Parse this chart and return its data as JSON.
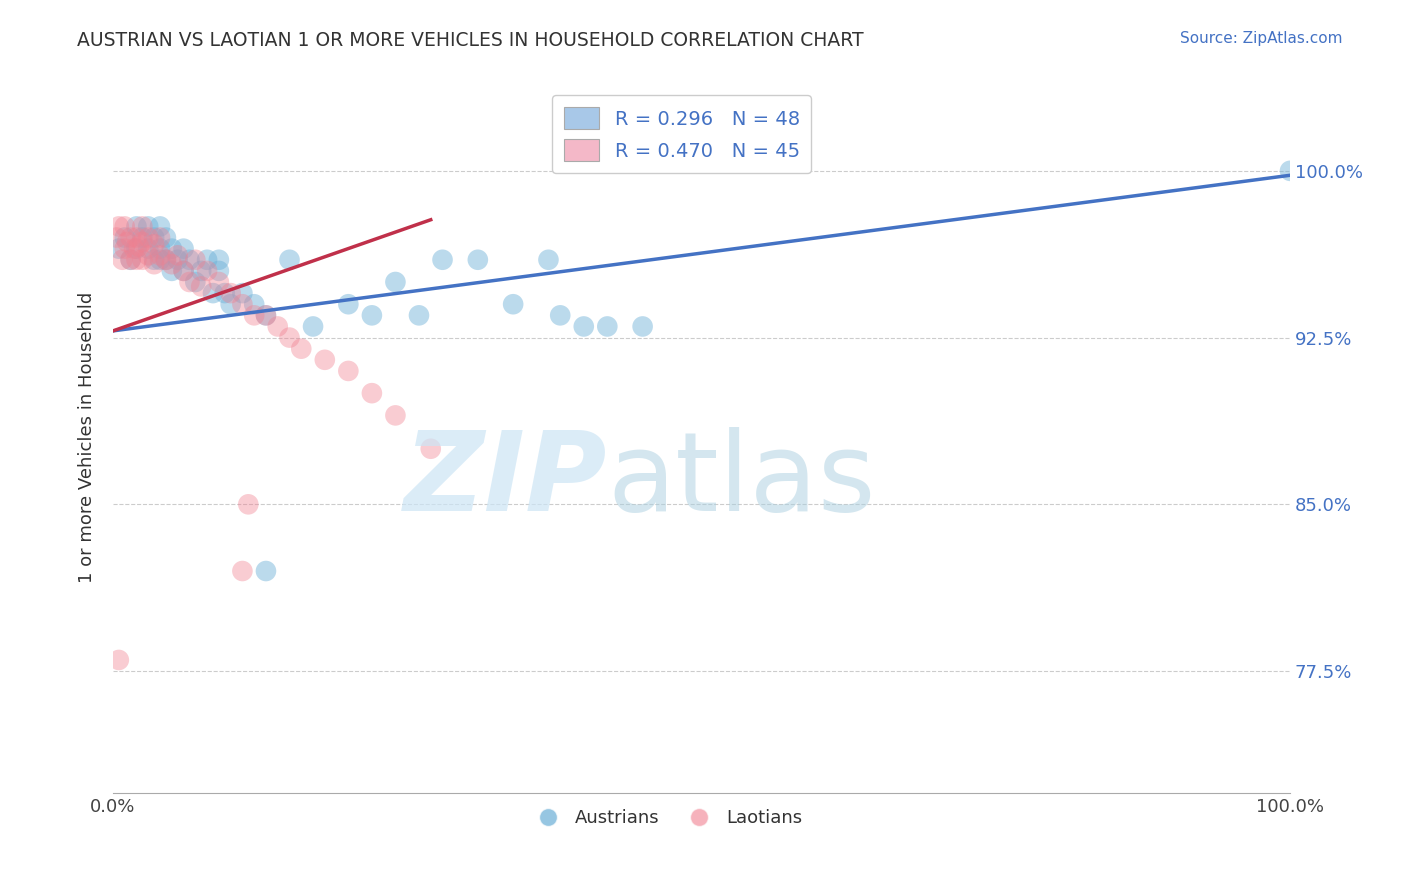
{
  "title": "AUSTRIAN VS LAOTIAN 1 OR MORE VEHICLES IN HOUSEHOLD CORRELATION CHART",
  "source": "Source: ZipAtlas.com",
  "ylabel": "1 or more Vehicles in Household",
  "xlim": [
    0.0,
    1.0
  ],
  "ylim": [
    0.72,
    1.04
  ],
  "yticks": [
    0.775,
    0.85,
    0.925,
    1.0
  ],
  "ytick_labels": [
    "77.5%",
    "85.0%",
    "92.5%",
    "100.0%"
  ],
  "xtick_labels": [
    "0.0%",
    "100.0%"
  ],
  "xticks": [
    0.0,
    1.0
  ],
  "legend_entries": [
    {
      "label": "R = 0.296   N = 48",
      "color": "#a8c8e8"
    },
    {
      "label": "R = 0.470   N = 45",
      "color": "#f4b8c8"
    }
  ],
  "blue_color": "#6aaed6",
  "pink_color": "#f08090",
  "blue_line_color": "#4472c4",
  "pink_line_color": "#c0304a",
  "background_color": "#ffffff",
  "blue_points_x": [
    0.005,
    0.01,
    0.015,
    0.02,
    0.02,
    0.025,
    0.03,
    0.03,
    0.035,
    0.035,
    0.04,
    0.04,
    0.04,
    0.045,
    0.045,
    0.05,
    0.05,
    0.055,
    0.06,
    0.06,
    0.065,
    0.07,
    0.075,
    0.08,
    0.085,
    0.09,
    0.09,
    0.095,
    0.1,
    0.11,
    0.12,
    0.13,
    0.15,
    0.17,
    0.2,
    0.22,
    0.24,
    0.26,
    0.28,
    0.31,
    0.34,
    0.37,
    0.38,
    0.4,
    0.42,
    0.45,
    0.13,
    1.0
  ],
  "blue_points_y": [
    0.965,
    0.97,
    0.96,
    0.965,
    0.975,
    0.97,
    0.965,
    0.975,
    0.96,
    0.97,
    0.96,
    0.965,
    0.975,
    0.96,
    0.97,
    0.955,
    0.965,
    0.96,
    0.955,
    0.965,
    0.96,
    0.95,
    0.955,
    0.96,
    0.945,
    0.955,
    0.96,
    0.945,
    0.94,
    0.945,
    0.94,
    0.935,
    0.96,
    0.93,
    0.94,
    0.935,
    0.95,
    0.935,
    0.96,
    0.96,
    0.94,
    0.96,
    0.935,
    0.93,
    0.93,
    0.93,
    0.82,
    1.0
  ],
  "pink_points_x": [
    0.003,
    0.005,
    0.008,
    0.01,
    0.01,
    0.012,
    0.015,
    0.015,
    0.018,
    0.02,
    0.02,
    0.022,
    0.025,
    0.025,
    0.025,
    0.03,
    0.03,
    0.035,
    0.035,
    0.04,
    0.04,
    0.045,
    0.05,
    0.055,
    0.06,
    0.065,
    0.07,
    0.075,
    0.08,
    0.09,
    0.1,
    0.11,
    0.12,
    0.13,
    0.14,
    0.15,
    0.16,
    0.18,
    0.2,
    0.22,
    0.24,
    0.27,
    0.11,
    0.115,
    0.005
  ],
  "pink_points_y": [
    0.97,
    0.975,
    0.96,
    0.965,
    0.975,
    0.968,
    0.96,
    0.97,
    0.965,
    0.96,
    0.97,
    0.966,
    0.96,
    0.968,
    0.975,
    0.962,
    0.97,
    0.958,
    0.967,
    0.962,
    0.97,
    0.96,
    0.958,
    0.962,
    0.955,
    0.95,
    0.96,
    0.948,
    0.955,
    0.95,
    0.945,
    0.94,
    0.935,
    0.935,
    0.93,
    0.925,
    0.92,
    0.915,
    0.91,
    0.9,
    0.89,
    0.875,
    0.82,
    0.85,
    0.78
  ]
}
